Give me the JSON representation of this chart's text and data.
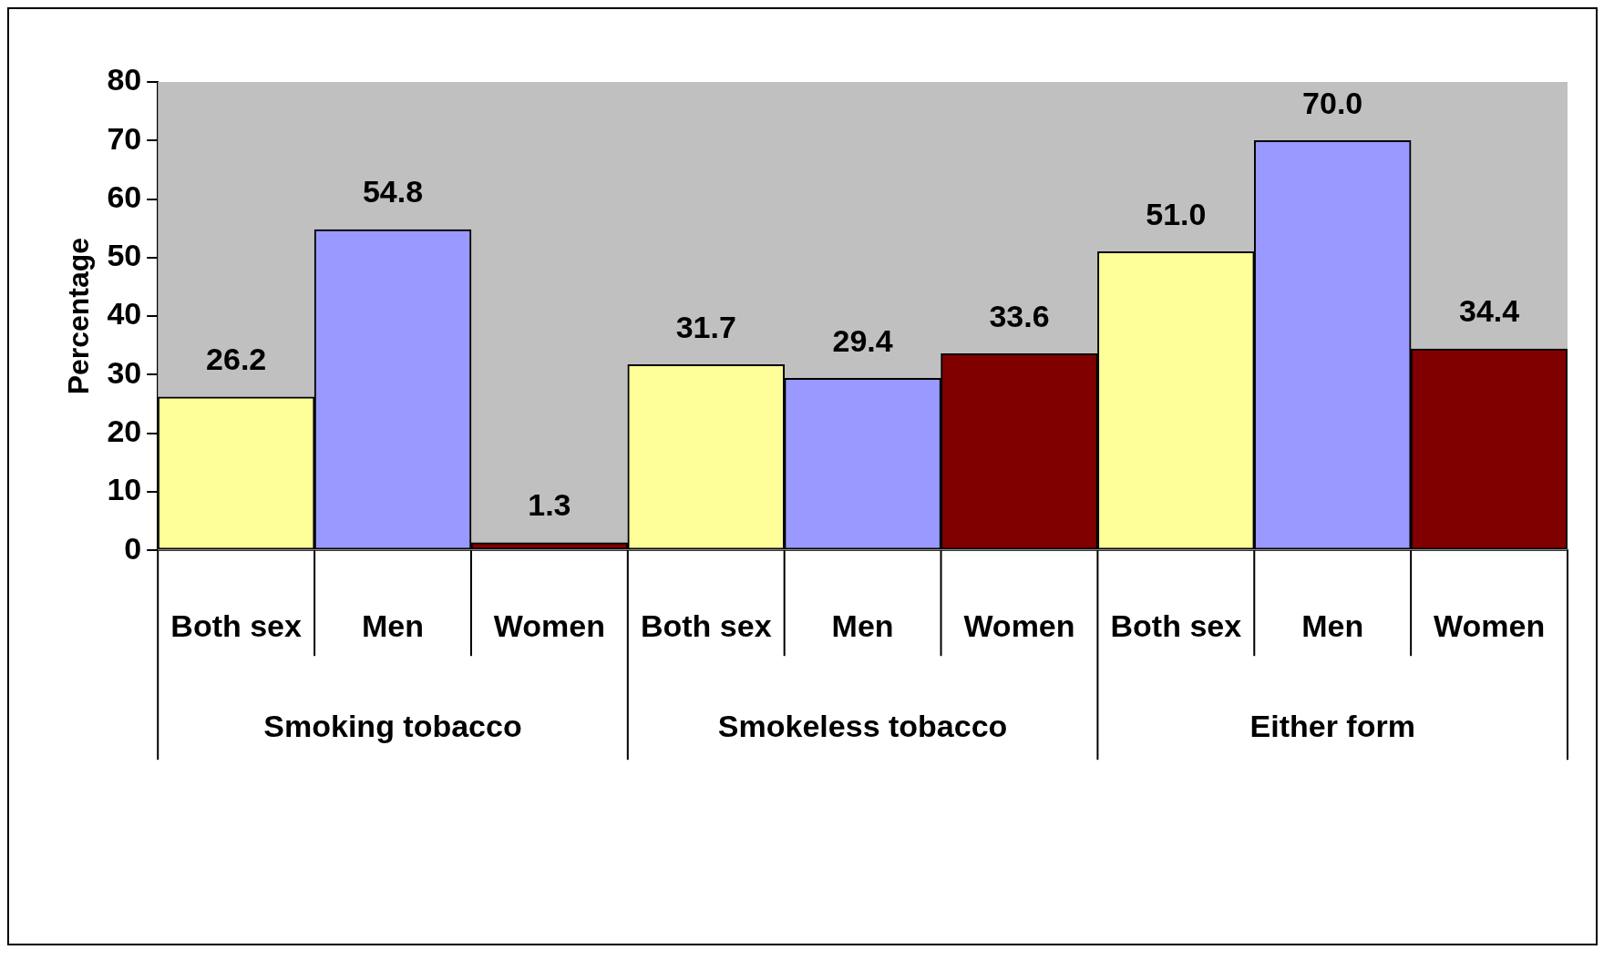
{
  "chart_data": {
    "type": "bar",
    "ylabel": "Percentage",
    "categories": [
      "Smoking tobacco",
      "Smokeless tobacco",
      "Either form"
    ],
    "series": [
      {
        "name": "Both sex",
        "color": "#ffff99",
        "values": [
          26.2,
          31.7,
          51.0
        ],
        "value_labels": [
          "26.2",
          "31.7",
          "51.0"
        ]
      },
      {
        "name": "Men",
        "color": "#9999ff",
        "values": [
          54.8,
          29.4,
          70.0
        ],
        "value_labels": [
          "54.8",
          "29.4",
          "70.0"
        ]
      },
      {
        "name": "Women",
        "color": "#800000",
        "values": [
          1.3,
          33.6,
          34.4
        ],
        "value_labels": [
          "1.3",
          "33.6",
          "34.4"
        ]
      }
    ],
    "ylim": [
      0,
      80
    ],
    "yticks": [
      0,
      10,
      20,
      30,
      40,
      50,
      60,
      70,
      80
    ],
    "grid": false,
    "legend": false
  }
}
